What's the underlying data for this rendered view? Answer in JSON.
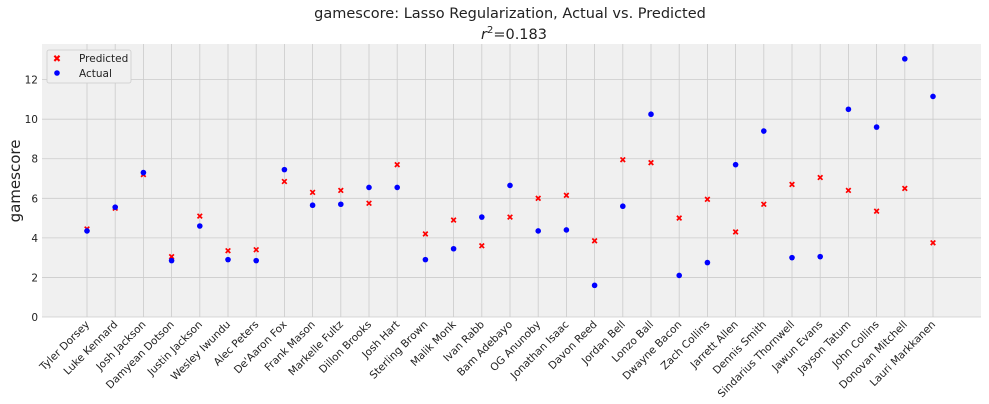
{
  "chart_data": {
    "type": "scatter",
    "title": "gamescore: Lasso Regularization, Actual vs. Predicted",
    "subtitle_prefix": "r",
    "subtitle_exp": "2",
    "subtitle_value": "=0.183",
    "xlabel": "",
    "ylabel": "gamescore",
    "ylim": [
      0,
      13.8
    ],
    "yticks": [
      0,
      2,
      4,
      6,
      8,
      10,
      12
    ],
    "grid": true,
    "legend_position": "top-left",
    "categories": [
      "Tyler Dorsey",
      "Luke Kennard",
      "Josh Jackson",
      "Damyean Dotson",
      "Justin Jackson",
      "Wesley Iwundu",
      "Alec Peters",
      "De'Aaron Fox",
      "Frank Mason",
      "Markelle Fultz",
      "Dillon Brooks",
      "Josh Hart",
      "Sterling Brown",
      "Malik Monk",
      "Ivan Rabb",
      "Bam Adebayo",
      "OG Anunoby",
      "Jonathan Isaac",
      "Davon Reed",
      "Jordan Bell",
      "Lonzo Ball",
      "Dwayne Bacon",
      "Zach Collins",
      "Jarrett Allen",
      "Dennis Smith",
      "Sindarius Thornwell",
      "Jawun Evans",
      "Jayson Tatum",
      "John Collins",
      "Donovan Mitchell",
      "Lauri Markkanen"
    ],
    "series": [
      {
        "name": "Predicted",
        "marker": "x",
        "color": "#ff0000",
        "values": [
          4.45,
          5.5,
          7.2,
          3.05,
          5.1,
          3.35,
          3.4,
          6.85,
          6.3,
          6.4,
          5.75,
          7.7,
          4.2,
          4.9,
          3.6,
          5.05,
          6.0,
          6.15,
          3.85,
          7.95,
          7.8,
          5.0,
          5.95,
          4.3,
          5.7,
          6.7,
          7.05,
          6.4,
          5.35,
          6.5,
          3.75
        ]
      },
      {
        "name": "Actual",
        "marker": "o",
        "color": "#0000ff",
        "values": [
          4.35,
          5.55,
          7.3,
          2.85,
          4.6,
          2.9,
          2.85,
          7.45,
          5.65,
          5.7,
          6.55,
          6.55,
          2.9,
          3.45,
          5.05,
          6.65,
          4.35,
          4.4,
          1.6,
          5.6,
          10.25,
          2.1,
          2.75,
          7.7,
          9.4,
          3.0,
          3.05,
          10.5,
          9.6,
          13.05,
          11.15
        ]
      }
    ]
  }
}
